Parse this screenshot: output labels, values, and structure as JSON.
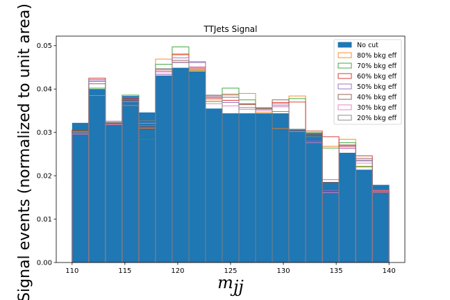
{
  "chart_data": {
    "type": "histogram",
    "title": "TTJets Signal",
    "xlabel": "m_jj",
    "xlabel_main": "m",
    "xlabel_sub": "jj",
    "ylabel": "Signal events (normalized to unit area)",
    "xlim": [
      108.5,
      141.5
    ],
    "ylim": [
      0,
      0.0522
    ],
    "x_ticks": [
      110,
      115,
      120,
      125,
      130,
      135,
      140
    ],
    "y_ticks": [
      0.0,
      0.01,
      0.02,
      0.03,
      0.04,
      0.05
    ],
    "y_tick_labels": [
      "0.00",
      "0.01",
      "0.02",
      "0.03",
      "0.04",
      "0.05"
    ],
    "bin_edges": [
      110,
      111.5789,
      113.1579,
      114.7368,
      116.3158,
      117.8947,
      119.4737,
      121.0526,
      122.6316,
      124.2105,
      125.7895,
      127.3684,
      128.9474,
      130.5263,
      132.1053,
      133.6842,
      135.2632,
      136.8421,
      138.4211,
      140
    ],
    "legend_position": "upper right",
    "grid": false,
    "series": [
      {
        "name": "No cut",
        "style": "filled",
        "color": "#1f77b4",
        "values": [
          0.0322,
          0.04,
          0.0322,
          0.0384,
          0.0346,
          0.0431,
          0.0449,
          0.0441,
          0.0355,
          0.0344,
          0.0344,
          0.0344,
          0.0344,
          0.0308,
          0.03,
          0.0185,
          0.0253,
          0.0214,
          0.0179
        ]
      },
      {
        "name": "80% bkg eff",
        "style": "step",
        "color": "#ff7f0e",
        "values": [
          0.0302,
          0.0385,
          0.032,
          0.0362,
          0.031,
          0.0469,
          0.0481,
          0.0443,
          0.0375,
          0.0386,
          0.039,
          0.0346,
          0.0309,
          0.0384,
          0.0298,
          0.0268,
          0.0284,
          0.022,
          0.0163
        ]
      },
      {
        "name": "70% bkg eff",
        "style": "step",
        "color": "#2ca02c",
        "values": [
          0.0303,
          0.0402,
          0.0321,
          0.0386,
          0.0284,
          0.0457,
          0.0497,
          0.0444,
          0.0371,
          0.0402,
          0.0375,
          0.0355,
          0.0348,
          0.0378,
          0.0299,
          0.0264,
          0.0276,
          0.0222,
          0.0167
        ]
      },
      {
        "name": "60% bkg eff",
        "style": "step",
        "color": "#d62728",
        "values": [
          0.0305,
          0.0425,
          0.0323,
          0.0378,
          0.0307,
          0.0441,
          0.0479,
          0.0447,
          0.0379,
          0.0374,
          0.0366,
          0.0357,
          0.0369,
          0.037,
          0.0303,
          0.029,
          0.0268,
          0.0246,
          0.0165
        ]
      },
      {
        "name": "50% bkg eff",
        "style": "step",
        "color": "#9467bd",
        "values": [
          0.0298,
          0.0419,
          0.0326,
          0.0376,
          0.0316,
          0.0433,
          0.0472,
          0.0461,
          0.0381,
          0.0369,
          0.0357,
          0.0353,
          0.0366,
          0.0306,
          0.028,
          0.0166,
          0.0264,
          0.0234,
          0.0161
        ]
      },
      {
        "name": "40% bkg eff",
        "style": "step",
        "color": "#8c564b",
        "values": [
          0.0306,
          0.0412,
          0.0322,
          0.0374,
          0.0313,
          0.0445,
          0.0466,
          0.045,
          0.0384,
          0.0381,
          0.0364,
          0.0355,
          0.0375,
          0.0305,
          0.0295,
          0.0185,
          0.0271,
          0.024,
          0.0168
        ]
      },
      {
        "name": "30% bkg eff",
        "style": "step",
        "color": "#e377c2",
        "values": [
          0.0296,
          0.0417,
          0.0318,
          0.0371,
          0.0321,
          0.0437,
          0.0462,
          0.0451,
          0.0366,
          0.0361,
          0.0353,
          0.035,
          0.0359,
          0.0302,
          0.0276,
          0.0161,
          0.0263,
          0.0229,
          0.0166
        ]
      },
      {
        "name": "20% bkg eff",
        "style": "step",
        "color": "#7f7f7f",
        "values": [
          0.03,
          0.0422,
          0.0323,
          0.038,
          0.0327,
          0.0447,
          0.0461,
          0.0463,
          0.0386,
          0.0388,
          0.0357,
          0.0357,
          0.0362,
          0.0307,
          0.029,
          0.0191,
          0.0269,
          0.0236,
          0.0164
        ]
      }
    ]
  }
}
